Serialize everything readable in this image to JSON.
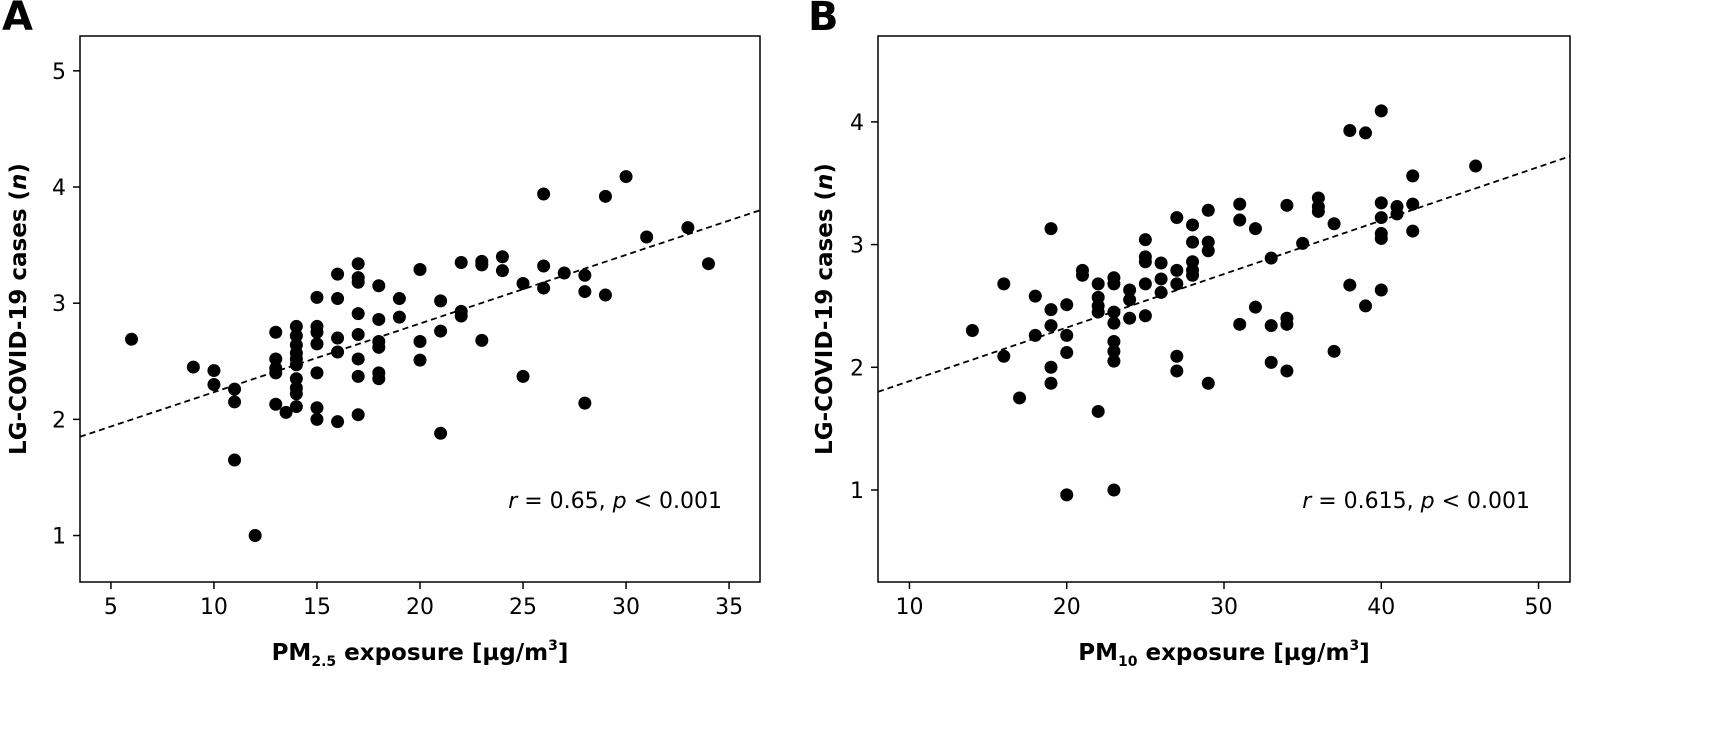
{
  "chart_data": [
    {
      "type": "scatter",
      "panel": "A",
      "xlabel": {
        "main": "PM",
        "sub": "2.5",
        "rest": " exposure [µg/m",
        "sup": "3",
        "end": "]"
      },
      "ylabel": {
        "pre": "LG-COVID-19 cases (",
        "ital": "n",
        "post": ")"
      },
      "xlim": [
        3.5,
        36.5
      ],
      "ylim": [
        0.6,
        5.3
      ],
      "xticks": [
        5,
        10,
        15,
        20,
        25,
        30,
        35
      ],
      "yticks": [
        1,
        2,
        3,
        4,
        5
      ],
      "points": [
        [
          6,
          2.69
        ],
        [
          9,
          2.45
        ],
        [
          10,
          2.42
        ],
        [
          10,
          2.3
        ],
        [
          11,
          2.26
        ],
        [
          11,
          2.15
        ],
        [
          11,
          1.65
        ],
        [
          12,
          1.0
        ],
        [
          13,
          2.75
        ],
        [
          13,
          2.52
        ],
        [
          13,
          2.44
        ],
        [
          13,
          2.4
        ],
        [
          13,
          2.13
        ],
        [
          13.5,
          2.06
        ],
        [
          14,
          2.8
        ],
        [
          14,
          2.72
        ],
        [
          14,
          2.64
        ],
        [
          14,
          2.57
        ],
        [
          14,
          2.52
        ],
        [
          14,
          2.47
        ],
        [
          14,
          2.35
        ],
        [
          14,
          2.27
        ],
        [
          14,
          2.22
        ],
        [
          14,
          2.11
        ],
        [
          15,
          3.05
        ],
        [
          15,
          2.8
        ],
        [
          15,
          2.75
        ],
        [
          15,
          2.65
        ],
        [
          15,
          2.4
        ],
        [
          15,
          2.1
        ],
        [
          15,
          2.0
        ],
        [
          16,
          3.25
        ],
        [
          16,
          3.04
        ],
        [
          16,
          2.7
        ],
        [
          16,
          2.58
        ],
        [
          16,
          1.98
        ],
        [
          17,
          3.34
        ],
        [
          17,
          3.22
        ],
        [
          17,
          3.18
        ],
        [
          17,
          2.91
        ],
        [
          17,
          2.73
        ],
        [
          17,
          2.52
        ],
        [
          17,
          2.37
        ],
        [
          17,
          2.04
        ],
        [
          18,
          3.15
        ],
        [
          18,
          2.86
        ],
        [
          18,
          2.67
        ],
        [
          18,
          2.62
        ],
        [
          18,
          2.4
        ],
        [
          18,
          2.35
        ],
        [
          19,
          3.04
        ],
        [
          19,
          2.88
        ],
        [
          20,
          3.29
        ],
        [
          20,
          2.67
        ],
        [
          20,
          2.51
        ],
        [
          21,
          3.02
        ],
        [
          21,
          2.76
        ],
        [
          21,
          1.88
        ],
        [
          22,
          3.35
        ],
        [
          22,
          2.93
        ],
        [
          22,
          2.89
        ],
        [
          23,
          3.36
        ],
        [
          23,
          3.33
        ],
        [
          23,
          2.68
        ],
        [
          24,
          3.4
        ],
        [
          24,
          3.28
        ],
        [
          25,
          3.17
        ],
        [
          25,
          2.37
        ],
        [
          26,
          3.94
        ],
        [
          26,
          3.32
        ],
        [
          26,
          3.13
        ],
        [
          27,
          3.26
        ],
        [
          28,
          3.24
        ],
        [
          28,
          3.1
        ],
        [
          28,
          2.14
        ],
        [
          29,
          3.92
        ],
        [
          29,
          3.07
        ],
        [
          30,
          4.09
        ],
        [
          31,
          3.57
        ],
        [
          33,
          3.65
        ],
        [
          34,
          3.34
        ]
      ],
      "trend": {
        "x": [
          3.5,
          36.5
        ],
        "y": [
          1.85,
          3.8
        ]
      },
      "annotation": {
        "r_sym": "r",
        "r_text": " = 0.65, ",
        "p_sym": "p",
        "p_text": " < 0.001"
      }
    },
    {
      "type": "scatter",
      "panel": "B",
      "xlabel": {
        "main": "PM",
        "sub": "10",
        "rest": " exposure [µg/m",
        "sup": "3",
        "end": "]"
      },
      "ylabel": {
        "pre": "LG-COVID-19 cases (",
        "ital": "n",
        "post": ")"
      },
      "xlim": [
        8,
        52
      ],
      "ylim": [
        0.25,
        4.7
      ],
      "xticks": [
        10,
        20,
        30,
        40,
        50
      ],
      "yticks": [
        1,
        2,
        3,
        4
      ],
      "points": [
        [
          14,
          2.3
        ],
        [
          16,
          2.68
        ],
        [
          16,
          2.09
        ],
        [
          17,
          1.75
        ],
        [
          18,
          2.58
        ],
        [
          18,
          2.26
        ],
        [
          19,
          3.13
        ],
        [
          19,
          2.47
        ],
        [
          19,
          2.34
        ],
        [
          19,
          2.0
        ],
        [
          19,
          1.87
        ],
        [
          20,
          2.51
        ],
        [
          20,
          2.26
        ],
        [
          20,
          2.12
        ],
        [
          20,
          0.96
        ],
        [
          21,
          2.79
        ],
        [
          21,
          2.75
        ],
        [
          22,
          2.68
        ],
        [
          22,
          2.57
        ],
        [
          22,
          2.5
        ],
        [
          22,
          2.45
        ],
        [
          22,
          1.64
        ],
        [
          23,
          2.73
        ],
        [
          23,
          2.68
        ],
        [
          23,
          2.45
        ],
        [
          23,
          2.36
        ],
        [
          23,
          2.21
        ],
        [
          23,
          2.13
        ],
        [
          23,
          2.05
        ],
        [
          23,
          1.0
        ],
        [
          24,
          2.63
        ],
        [
          24,
          2.55
        ],
        [
          24,
          2.4
        ],
        [
          25,
          3.04
        ],
        [
          25,
          2.9
        ],
        [
          25,
          2.86
        ],
        [
          25,
          2.68
        ],
        [
          25,
          2.42
        ],
        [
          26,
          2.85
        ],
        [
          26,
          2.72
        ],
        [
          26,
          2.61
        ],
        [
          27,
          3.22
        ],
        [
          27,
          2.79
        ],
        [
          27,
          2.68
        ],
        [
          27,
          2.09
        ],
        [
          27,
          1.97
        ],
        [
          28,
          3.16
        ],
        [
          28,
          3.02
        ],
        [
          28,
          2.86
        ],
        [
          28,
          2.79
        ],
        [
          28,
          2.75
        ],
        [
          29,
          3.28
        ],
        [
          29,
          3.02
        ],
        [
          29,
          2.95
        ],
        [
          29,
          1.87
        ],
        [
          31,
          3.33
        ],
        [
          31,
          3.2
        ],
        [
          31,
          2.35
        ],
        [
          32,
          3.13
        ],
        [
          32,
          2.49
        ],
        [
          33,
          2.89
        ],
        [
          33,
          2.34
        ],
        [
          33,
          2.04
        ],
        [
          34,
          3.32
        ],
        [
          34,
          2.4
        ],
        [
          34,
          2.35
        ],
        [
          34,
          1.97
        ],
        [
          35,
          3.01
        ],
        [
          36,
          3.38
        ],
        [
          36,
          3.31
        ],
        [
          36,
          3.27
        ],
        [
          37,
          3.17
        ],
        [
          37,
          2.13
        ],
        [
          38,
          3.93
        ],
        [
          38,
          2.67
        ],
        [
          39,
          3.91
        ],
        [
          39,
          2.5
        ],
        [
          40,
          4.09
        ],
        [
          40,
          3.34
        ],
        [
          40,
          3.22
        ],
        [
          40,
          3.09
        ],
        [
          40,
          3.05
        ],
        [
          40,
          2.63
        ],
        [
          41,
          3.31
        ],
        [
          41,
          3.25
        ],
        [
          42,
          3.56
        ],
        [
          42,
          3.33
        ],
        [
          42,
          3.11
        ],
        [
          46,
          3.64
        ]
      ],
      "trend": {
        "x": [
          8,
          52
        ],
        "y": [
          1.8,
          3.72
        ]
      },
      "annotation": {
        "r_sym": "r",
        "r_text": " = 0.615, ",
        "p_sym": "p",
        "p_text": " < 0.001"
      }
    }
  ]
}
